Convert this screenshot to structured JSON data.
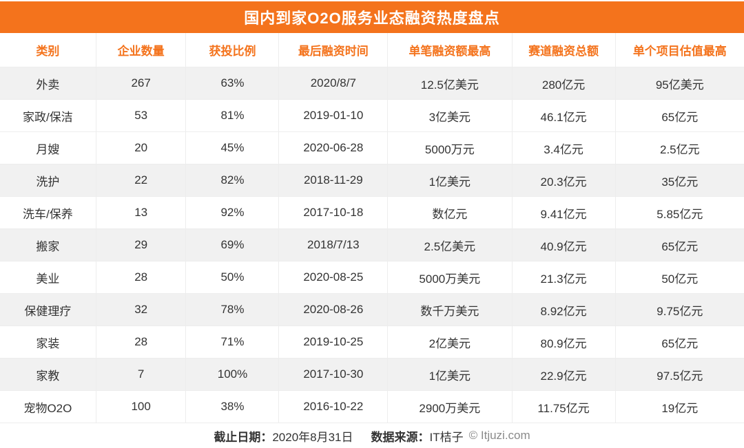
{
  "chart_data": {
    "type": "table",
    "title": "国内到家O2O服务业态融资热度盘点",
    "columns": [
      "类别",
      "企业数量",
      "获投比例",
      "最后融资时间",
      "单笔融资额最高",
      "赛道融资总额",
      "单个项目估值最高"
    ],
    "column_keys": [
      "category",
      "company-count",
      "funded-ratio",
      "last-funding-date",
      "max-single-funding",
      "track-total-funding",
      "max-project-valuation"
    ],
    "rows": [
      [
        "外卖",
        "267",
        "63%",
        "2020/8/7",
        "12.5亿美元",
        "280亿元",
        "95亿美元"
      ],
      [
        "家政/保洁",
        "53",
        "81%",
        "2019-01-10",
        "3亿美元",
        "46.1亿元",
        "65亿元"
      ],
      [
        "月嫂",
        "20",
        "45%",
        "2020-06-28",
        "5000万元",
        "3.4亿元",
        "2.5亿元"
      ],
      [
        "洗护",
        "22",
        "82%",
        "2018-11-29",
        "1亿美元",
        "20.3亿元",
        "35亿元"
      ],
      [
        "洗车/保养",
        "13",
        "92%",
        "2017-10-18",
        "数亿元",
        "9.41亿元",
        "5.85亿元"
      ],
      [
        "搬家",
        "29",
        "69%",
        "2018/7/13",
        "2.5亿美元",
        "40.9亿元",
        "65亿元"
      ],
      [
        "美业",
        "28",
        "50%",
        "2020-08-25",
        "5000万美元",
        "21.3亿元",
        "50亿元"
      ],
      [
        "保健理疗",
        "32",
        "78%",
        "2020-08-26",
        "数千万美元",
        "8.92亿元",
        "9.75亿元"
      ],
      [
        "家装",
        "28",
        "71%",
        "2019-10-25",
        "2亿美元",
        "80.9亿元",
        "65亿元"
      ],
      [
        "家教",
        "7",
        "100%",
        "2017-10-30",
        "1亿美元",
        "22.9亿元",
        "97.5亿元"
      ],
      [
        "宠物O2O",
        "100",
        "38%",
        "2016-10-22",
        "2900万美元",
        "11.75亿元",
        "19亿元"
      ]
    ],
    "shaded_row_indices": [
      0,
      3,
      5,
      7,
      9
    ],
    "layout": {
      "column_widths_percent": [
        12.9,
        12.1,
        12.5,
        14.6,
        16.7,
        13.9,
        17.3
      ]
    }
  },
  "footer": {
    "deadline_label": "截止日期：",
    "deadline_value": "2020年8月31日",
    "source_label": "数据来源：",
    "source_value": "IT桔子",
    "copyright": "© Itjuzi.com"
  },
  "colors": {
    "accent_orange": "#F4731C",
    "header_text": "#F4731C",
    "cell_text": "#333333",
    "shaded_row": "#F1F1F1",
    "border": "#EDEDED",
    "copyright_text": "#8A8A8A"
  }
}
